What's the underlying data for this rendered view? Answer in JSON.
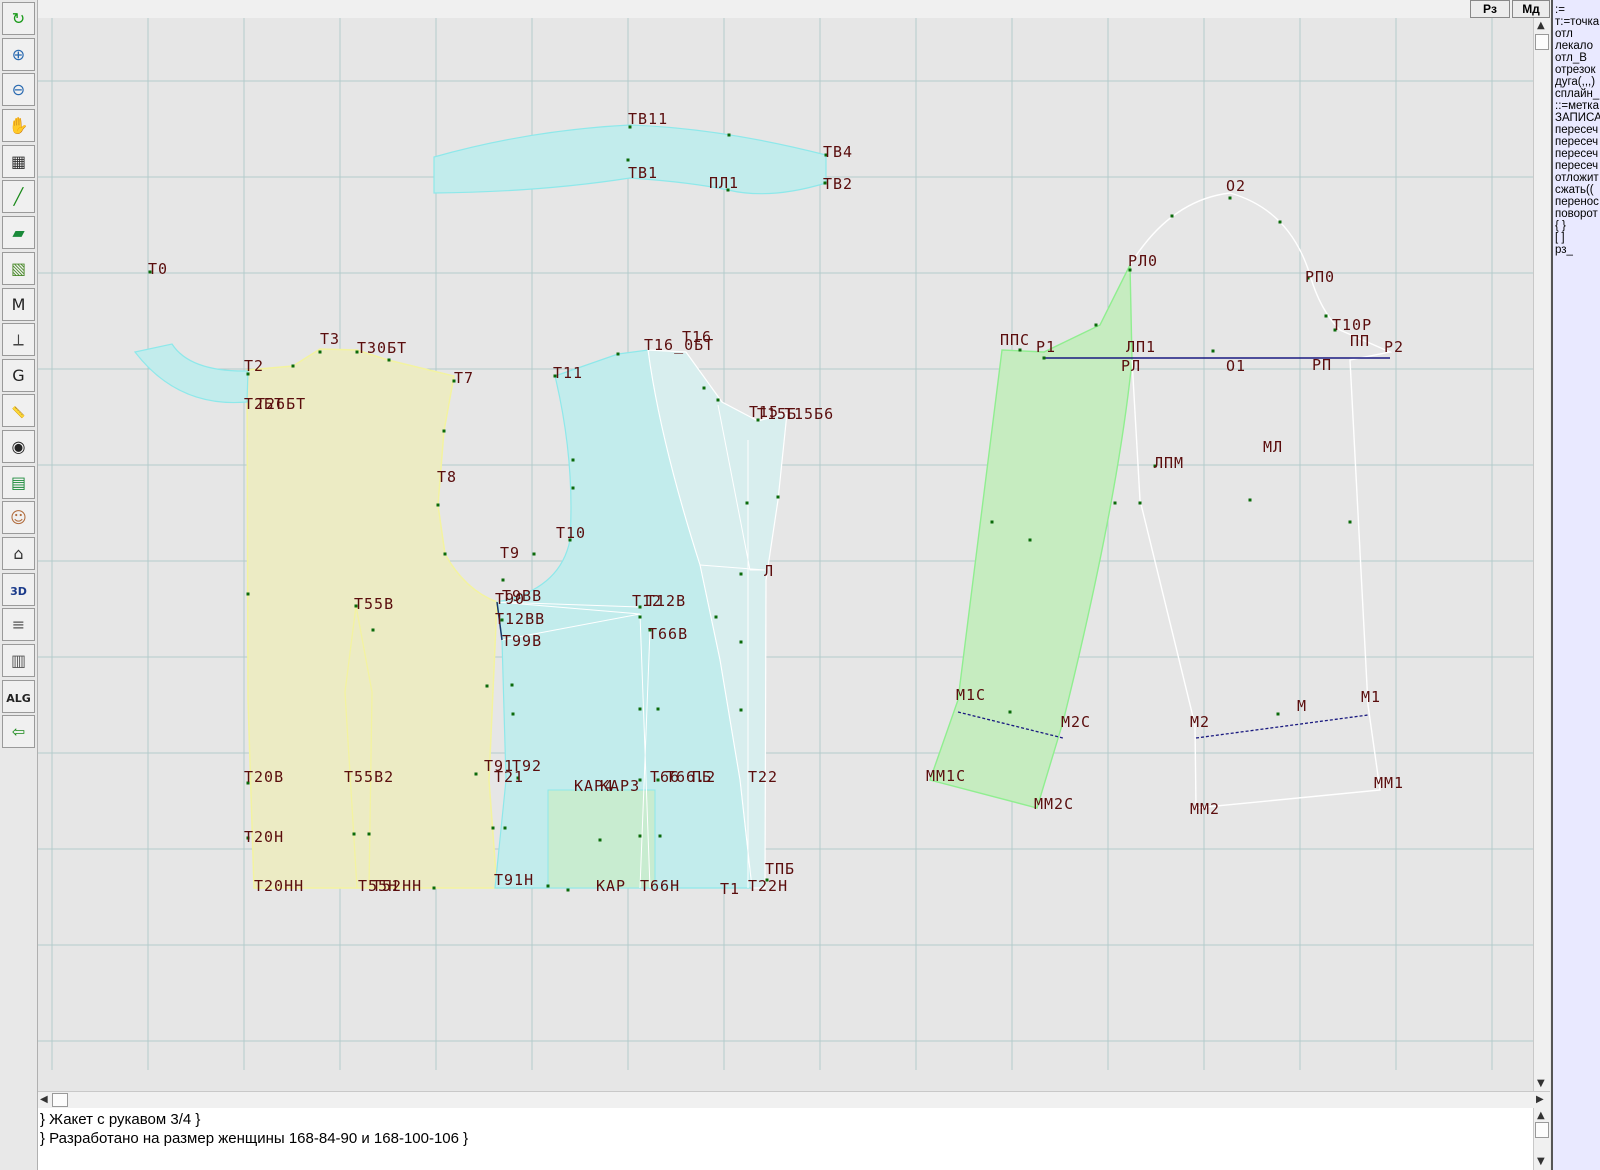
{
  "toolbar": [
    {
      "name": "refresh-icon",
      "glyph": "↻",
      "color": "#1a9a1a"
    },
    {
      "name": "zoom-in-icon",
      "glyph": "⊕",
      "color": "#2a6ab0"
    },
    {
      "name": "zoom-out-icon",
      "glyph": "⊖",
      "color": "#2a6ab0"
    },
    {
      "name": "pan-icon",
      "glyph": "✋",
      "color": "#8a6a2a"
    },
    {
      "name": "grid-icon",
      "glyph": "▦",
      "color": "#333333"
    },
    {
      "name": "line-tool-icon",
      "glyph": "╱",
      "color": "#1a8a1a"
    },
    {
      "name": "pattern-tool-icon",
      "glyph": "▰",
      "color": "#1a8a3a"
    },
    {
      "name": "pattern-piece-icon",
      "glyph": "▧",
      "color": "#4a8a2a"
    },
    {
      "name": "measure-m-icon",
      "glyph": "M",
      "color": "#222222"
    },
    {
      "name": "compass-icon",
      "glyph": "⟂",
      "color": "#444444"
    },
    {
      "name": "measure-g-icon",
      "glyph": "G",
      "color": "#222222"
    },
    {
      "name": "ruler-icon",
      "glyph": "📏",
      "color": "#3a6aa0"
    },
    {
      "name": "camera-icon",
      "glyph": "◉",
      "color": "#222222"
    },
    {
      "name": "table-icon",
      "glyph": "▤",
      "color": "#1a8a3a"
    },
    {
      "name": "avatar-icon",
      "glyph": "☺",
      "color": "#b06a3a"
    },
    {
      "name": "garment-icon",
      "glyph": "⌂",
      "color": "#333333"
    },
    {
      "name": "3d-view-icon",
      "glyph": "3D",
      "color": "#1a3a8a"
    },
    {
      "name": "document-icon",
      "glyph": "≡",
      "color": "#555555"
    },
    {
      "name": "library-icon",
      "glyph": "▥",
      "color": "#555555"
    },
    {
      "name": "algorithm-icon",
      "glyph": "ALG",
      "color": "#222222"
    },
    {
      "name": "exit-icon",
      "glyph": "⇦",
      "color": "#1a8a1a"
    }
  ],
  "top_buttons": {
    "rz": "Рз",
    "md": "Мд"
  },
  "command_panel": [
    ":=",
    "т:=точка",
    "отл",
    "лекало",
    "отл_В",
    "отрезок",
    "дуга(,,,)",
    "сплайн_",
    "::=метка",
    "ЗАПИСА",
    "пересеч",
    "пересеч",
    "пересеч",
    "пересеч",
    "отложит",
    "сжать((",
    "перенос",
    "поворот",
    "{ }",
    "[ ]",
    "рз_"
  ],
  "console_lines": [
    "} Жакет с рукавом 3/4 }",
    "} Разработано на размер женщины 168-84-90 и 168-100-106  }"
  ],
  "colors": {
    "grid": "#b4cccc",
    "label": "#5a0d0d",
    "point": "#0a6a0a",
    "yellow_fill": "#ecebc4",
    "cyan_fill": "#c2ecec",
    "green_fill": "#c6ecc0",
    "white_line": "#ffffff",
    "navy_line": "#1a1a80"
  },
  "canvas": {
    "labels": [
      "Т0",
      "Т2",
      "Т3",
      "Т30БТ",
      "Т7",
      "Т2БТ",
      "Т26БТ",
      "Т8",
      "Т55В",
      "Т20В",
      "Т55В2",
      "Т20Н",
      "Т20НН",
      "Т55Н",
      "Т52НН",
      "ТВ11",
      "ТВ4",
      "ТВ1",
      "ПЛ1",
      "ТВ2",
      "Т16",
      "Т16_0БТ",
      "Т11",
      "Т15",
      "Т15Б",
      "Т15Б6",
      "Т10",
      "Т9",
      "Т9ВВ",
      "Т90",
      "Т12ВВ",
      "Т99В",
      "Т12",
      "Т12В",
      "Т66В",
      "Л",
      "Т91",
      "Т92",
      "Т21",
      "КАР4",
      "КАР3",
      "Т66",
      "Т66.2",
      "ПБ",
      "Т22",
      "КАР",
      "Т66Н",
      "Т1",
      "ТПБ",
      "Т22Н",
      "Т91Н",
      "О2",
      "РЛ0",
      "РП0",
      "Т10Р",
      "ППС",
      "Р1",
      "ЛП1",
      "ПП",
      "Р2",
      "РЛ",
      "О1",
      "РП",
      "ЛПМ",
      "МЛ",
      "М1С",
      "М2С",
      "ММ1С",
      "ММ2С",
      "М2",
      "М",
      "М1",
      "ММ1",
      "ММ2"
    ]
  }
}
